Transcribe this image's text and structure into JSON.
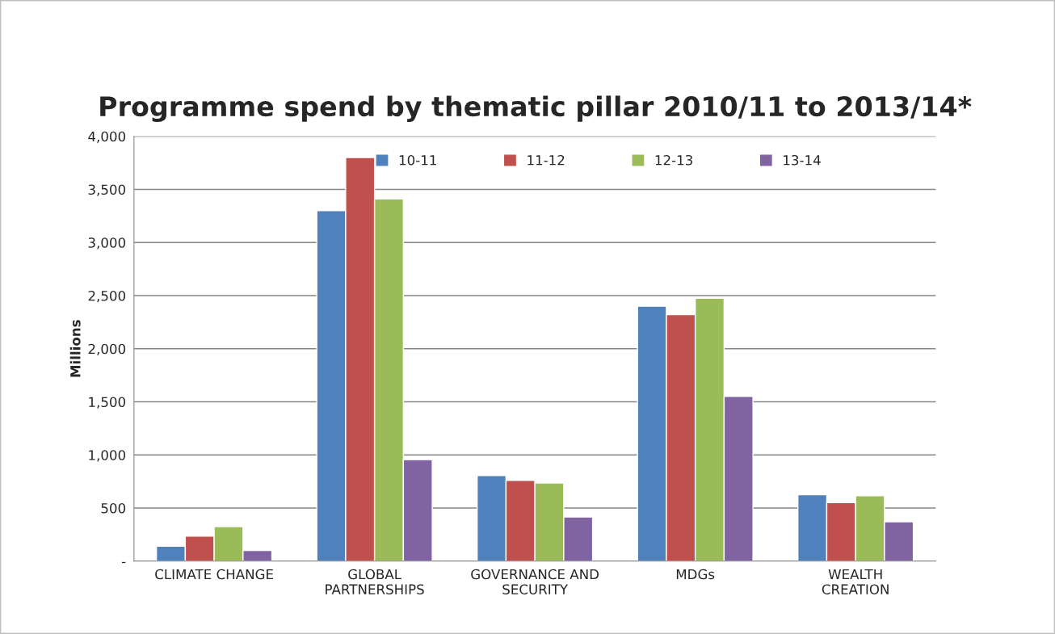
{
  "chart_data": {
    "type": "bar",
    "title": "Programme spend by thematic pillar 2010/11 to 2013/14*",
    "ylabel": "Millions",
    "categories": [
      "CLIMATE CHANGE",
      "GLOBAL\nPARTNERSHIPS",
      "GOVERNANCE AND\nSECURITY",
      "MDGs",
      "WEALTH\nCREATION"
    ],
    "series": [
      {
        "name": "10-11",
        "color": "#4f81bd",
        "values": [
          140,
          3300,
          805,
          2400,
          625
        ]
      },
      {
        "name": "11-12",
        "color": "#c0504d",
        "values": [
          235,
          3800,
          760,
          2320,
          550
        ]
      },
      {
        "name": "12-13",
        "color": "#9bbb59",
        "values": [
          325,
          3410,
          735,
          2475,
          615
        ]
      },
      {
        "name": "13-14",
        "color": "#8064a2",
        "values": [
          100,
          955,
          415,
          1550,
          370
        ]
      }
    ],
    "ylim": [
      0,
      4000
    ],
    "yticks": [
      {
        "value": 0,
        "label": "-"
      },
      500,
      {
        "value": 1000,
        "label": "1,000"
      },
      {
        "value": 1500,
        "label": "1,500"
      },
      {
        "value": 2000,
        "label": "2,000"
      },
      {
        "value": 2500,
        "label": "2,500"
      },
      {
        "value": 3000,
        "label": "3,000"
      },
      {
        "value": 3500,
        "label": "3,500"
      },
      {
        "value": 4000,
        "label": "4,000"
      }
    ],
    "grid": "y",
    "legend": "top"
  }
}
